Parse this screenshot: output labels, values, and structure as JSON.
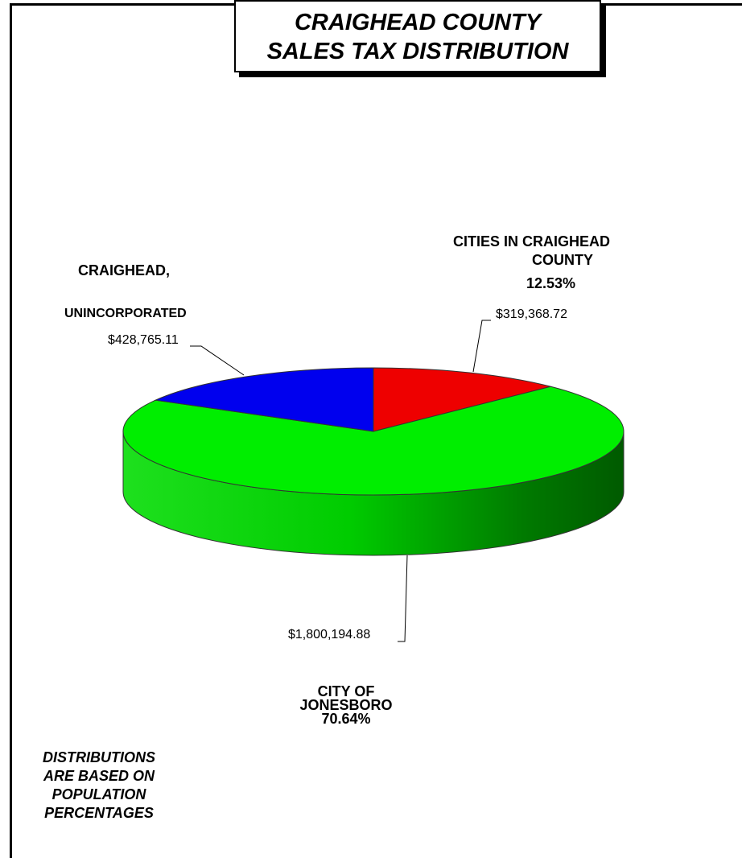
{
  "title": {
    "line1": "CRAIGHEAD COUNTY",
    "line2": "SALES TAX DISTRIBUTION"
  },
  "chart_data": {
    "type": "pie",
    "slices": [
      {
        "name": "CITIES IN CRAIGHEAD COUNTY",
        "value": 319368.72,
        "value_label": "$319,368.72",
        "percent_label": "12.53%",
        "color": "#ee0000"
      },
      {
        "name": "CITY OF JONESBORO",
        "value": 1800194.88,
        "value_label": "$1,800,194.88",
        "percent_label": "70.64%",
        "color": "#00ee00"
      },
      {
        "name": "CRAIGHEAD, UNINCORPORATED",
        "value": 428765.11,
        "value_label": "$428,765.11",
        "percent_label": "",
        "color": "#0000ee"
      }
    ]
  },
  "labels": {
    "cities_line1": "CITIES IN CRAIGHEAD",
    "cities_line2": "COUNTY",
    "cities_pct": "12.53%",
    "uninc_line1": "CRAIGHEAD,",
    "uninc_line2": "UNINCORPORATED",
    "jonesboro_line1": "CITY OF",
    "jonesboro_line2": "JONESBORO",
    "jonesboro_pct": "70.64%"
  },
  "note": [
    "DISTRIBUTIONS",
    "ARE BASED ON",
    "POPULATION",
    "PERCENTAGES"
  ]
}
